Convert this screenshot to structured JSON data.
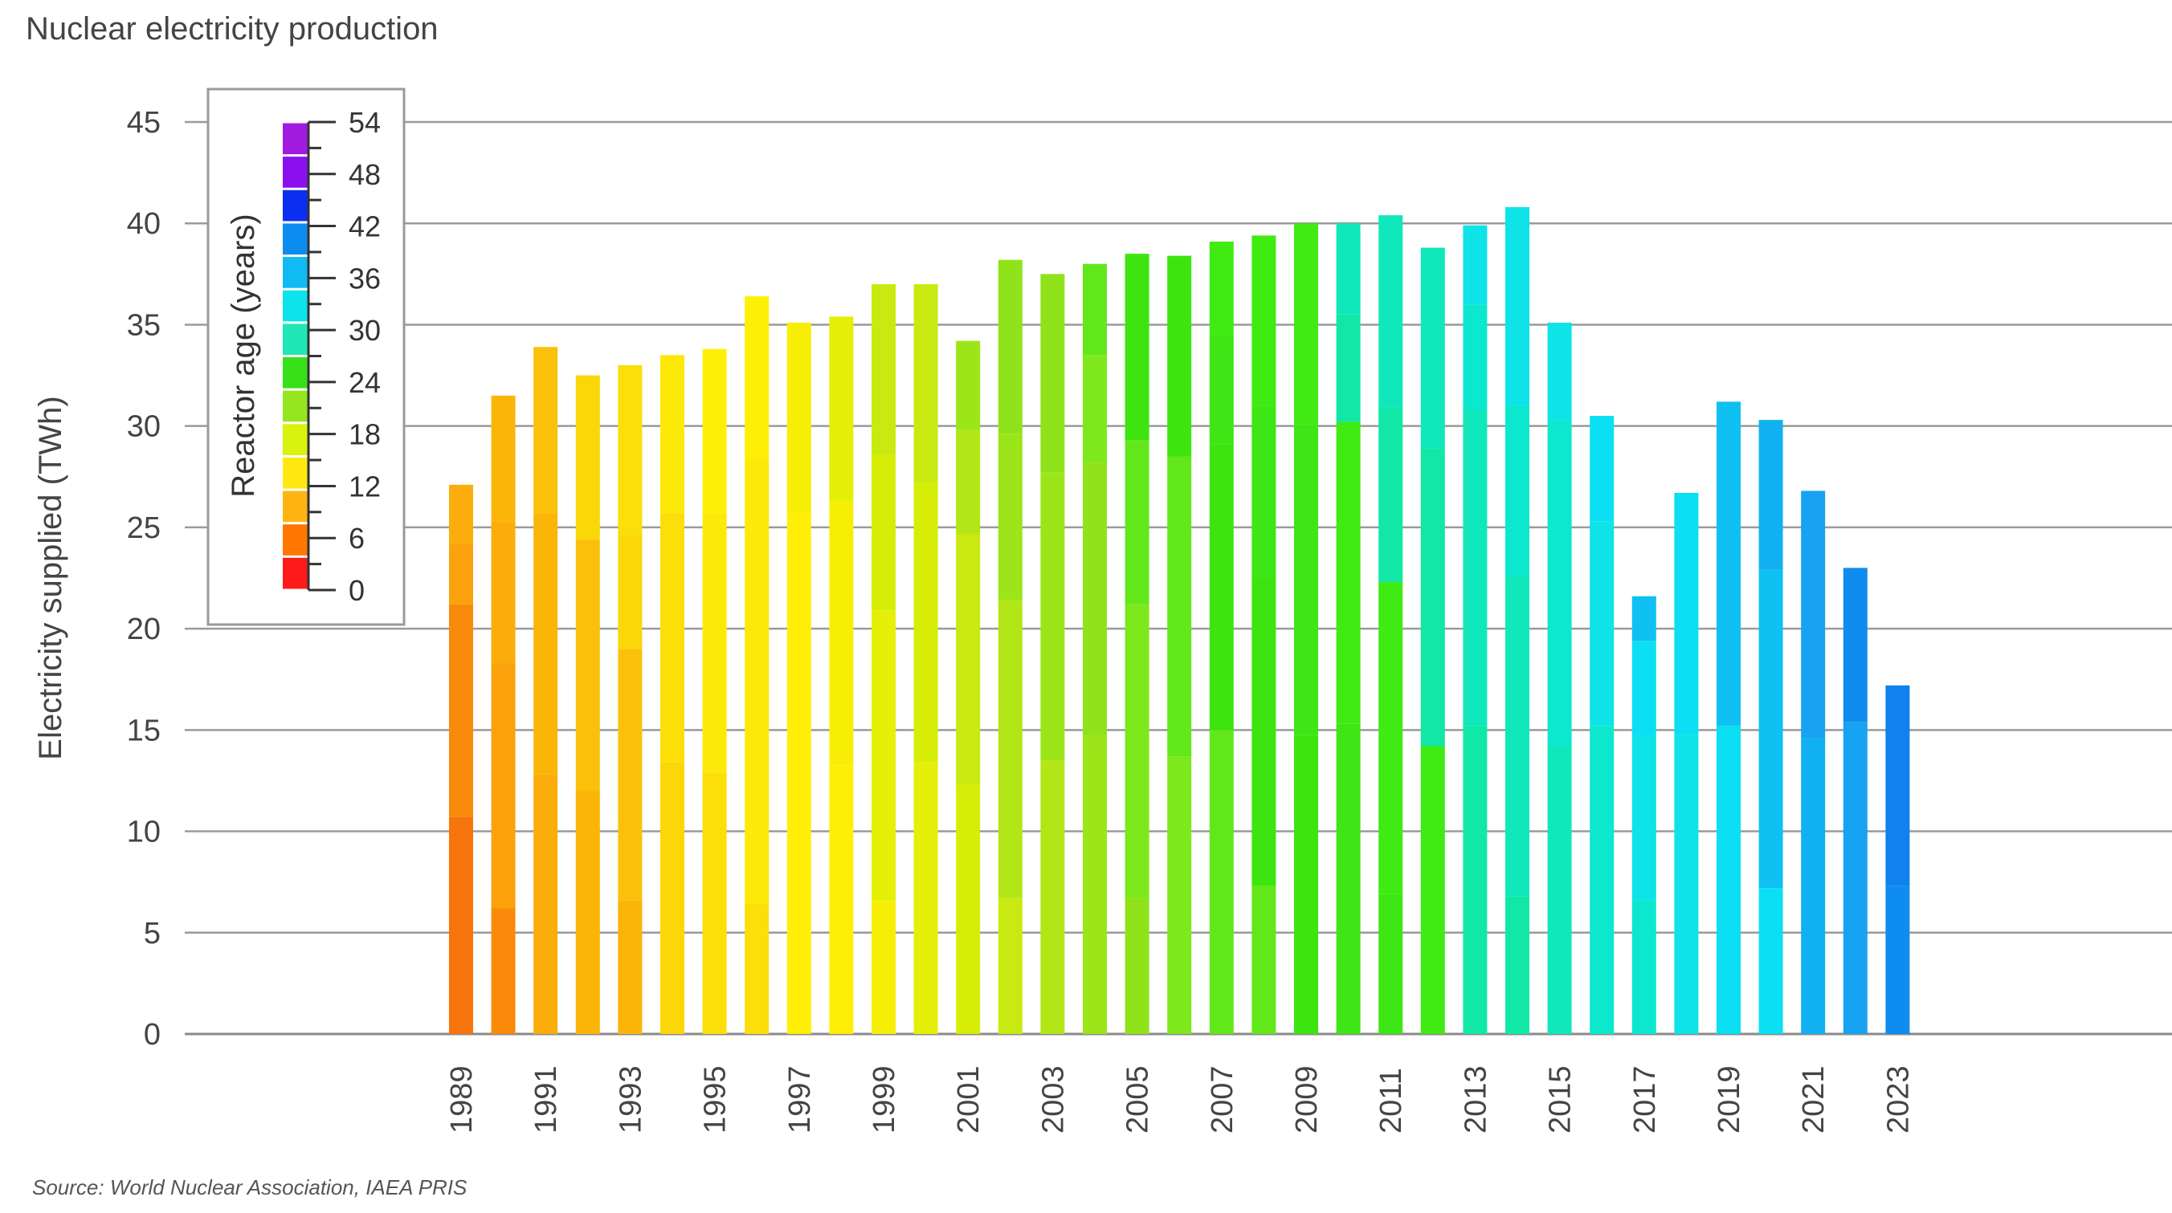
{
  "chart_data": {
    "type": "bar",
    "stacked": true,
    "title": "Nuclear electricity production",
    "source": "Source: World Nuclear Association, IAEA PRIS",
    "ylabel": "Electricity supplied (TWh)",
    "xlabel": "",
    "ylim": [
      0,
      45
    ],
    "yticks": [
      "0",
      "5",
      "10",
      "15",
      "20",
      "25",
      "30",
      "35",
      "40",
      "45"
    ],
    "grid": true,
    "categories": [
      1989,
      1990,
      1991,
      1992,
      1993,
      1994,
      1995,
      1996,
      1997,
      1998,
      1999,
      2000,
      2001,
      2002,
      2003,
      2004,
      2005,
      2006,
      2007,
      2008,
      2009,
      2010,
      2011,
      2012,
      2013,
      2014,
      2015,
      2016,
      2017,
      2018,
      2019,
      2020,
      2021,
      2022,
      2023
    ],
    "xtick_labels": [
      "1989",
      "1991",
      "1993",
      "1995",
      "1997",
      "1999",
      "2001",
      "2003",
      "2005",
      "2007",
      "2009",
      "2011",
      "2013",
      "2015",
      "2017",
      "2019",
      "2021",
      "2023"
    ],
    "totals": [
      27.1,
      31.5,
      33.9,
      32.5,
      33.0,
      33.5,
      33.8,
      36.4,
      35.1,
      35.4,
      37.0,
      37.0,
      34.2,
      38.2,
      37.5,
      38.0,
      38.5,
      38.4,
      39.1,
      39.4,
      40.0,
      40.0,
      40.4,
      38.8,
      39.9,
      40.8,
      35.1,
      30.5,
      21.6,
      26.7,
      31.2,
      30.3,
      26.8,
      23.0,
      17.2
    ],
    "segments": [
      [
        [
          10.7,
          4
        ],
        [
          10.5,
          5
        ],
        [
          3.0,
          6
        ],
        [
          2.9,
          7
        ]
      ],
      [
        [
          6.2,
          5
        ],
        [
          12.1,
          6
        ],
        [
          7.0,
          7
        ],
        [
          6.2,
          8
        ]
      ],
      [
        [
          12.8,
          7
        ],
        [
          12.9,
          8
        ],
        [
          8.2,
          9
        ]
      ],
      [
        [
          12.0,
          8
        ],
        [
          12.4,
          9
        ],
        [
          8.1,
          10
        ]
      ],
      [
        [
          6.6,
          8
        ],
        [
          12.4,
          9
        ],
        [
          5.6,
          10
        ],
        [
          8.4,
          11
        ]
      ],
      [
        [
          13.4,
          10
        ],
        [
          12.3,
          11
        ],
        [
          7.8,
          12
        ]
      ],
      [
        [
          12.9,
          11
        ],
        [
          12.8,
          12
        ],
        [
          8.1,
          13
        ]
      ],
      [
        [
          6.4,
          11
        ],
        [
          22.0,
          12
        ],
        [
          8.0,
          13
        ]
      ],
      [
        [
          25.7,
          13
        ],
        [
          9.4,
          14
        ]
      ],
      [
        [
          13.3,
          13
        ],
        [
          13.0,
          14
        ],
        [
          9.1,
          15
        ]
      ],
      [
        [
          6.6,
          14
        ],
        [
          14.3,
          15
        ],
        [
          7.7,
          16
        ],
        [
          8.4,
          17
        ]
      ],
      [
        [
          13.4,
          15
        ],
        [
          13.8,
          16
        ],
        [
          9.8,
          17
        ]
      ],
      [
        [
          12.3,
          16
        ],
        [
          12.4,
          17
        ],
        [
          5.1,
          18
        ],
        [
          4.4,
          19
        ]
      ],
      [
        [
          6.7,
          17
        ],
        [
          14.7,
          18
        ],
        [
          8.2,
          19
        ],
        [
          8.6,
          20
        ]
      ],
      [
        [
          13.5,
          18
        ],
        [
          14.2,
          19
        ],
        [
          9.8,
          20
        ]
      ],
      [
        [
          14.7,
          19
        ],
        [
          13.5,
          20
        ],
        [
          5.3,
          21
        ],
        [
          4.5,
          22
        ]
      ],
      [
        [
          6.7,
          20
        ],
        [
          14.5,
          21
        ],
        [
          8.1,
          22
        ],
        [
          9.2,
          23
        ]
      ],
      [
        [
          13.7,
          21
        ],
        [
          14.8,
          22
        ],
        [
          9.9,
          23
        ]
      ],
      [
        [
          15.0,
          22
        ],
        [
          14.1,
          23
        ],
        [
          5.4,
          24
        ],
        [
          4.6,
          25
        ]
      ],
      [
        [
          7.3,
          22
        ],
        [
          15.2,
          23
        ],
        [
          8.5,
          24
        ],
        [
          8.4,
          25
        ]
      ],
      [
        [
          14.7,
          23
        ],
        [
          15.4,
          24
        ],
        [
          9.9,
          25
        ]
      ],
      [
        [
          15.3,
          24
        ],
        [
          14.9,
          25
        ],
        [
          5.3,
          26
        ],
        [
          4.5,
          27
        ]
      ],
      [
        [
          6.9,
          24
        ],
        [
          15.4,
          25
        ],
        [
          8.6,
          26
        ],
        [
          9.5,
          27
        ]
      ],
      [
        [
          14.2,
          25
        ],
        [
          14.7,
          26
        ],
        [
          9.9,
          27
        ]
      ],
      [
        [
          15.2,
          26
        ],
        [
          15.6,
          27
        ],
        [
          5.2,
          28
        ],
        [
          3.9,
          29
        ]
      ],
      [
        [
          6.8,
          26
        ],
        [
          15.8,
          27
        ],
        [
          8.4,
          28
        ],
        [
          9.8,
          29
        ]
      ],
      [
        [
          14.2,
          27
        ],
        [
          16.1,
          28
        ],
        [
          4.8,
          29
        ]
      ],
      [
        [
          15.2,
          28
        ],
        [
          10.1,
          29
        ],
        [
          5.2,
          30
        ]
      ],
      [
        [
          6.6,
          28
        ],
        [
          8.1,
          29
        ],
        [
          4.7,
          30
        ],
        [
          2.2,
          31
        ]
      ],
      [
        [
          14.8,
          29
        ],
        [
          11.9,
          30
        ]
      ],
      [
        [
          15.2,
          30
        ],
        [
          16.0,
          31
        ]
      ],
      [
        [
          7.2,
          30
        ],
        [
          15.7,
          31
        ],
        [
          7.4,
          32
        ]
      ],
      [
        [
          14.6,
          32
        ],
        [
          12.2,
          33
        ]
      ],
      [
        [
          15.4,
          33
        ],
        [
          7.6,
          34
        ]
      ],
      [
        [
          7.3,
          34
        ],
        [
          9.9,
          35
        ]
      ]
    ],
    "color_scale": {
      "title": "Reactor age (years)",
      "ticks": [
        "0",
        "6",
        "12",
        "18",
        "24",
        "30",
        "36",
        "42",
        "48",
        "54"
      ],
      "colors": [
        "#ff1a1a",
        "#ff7700",
        "#ffb411",
        "#ffe812",
        "#d9f20e",
        "#95e61e",
        "#38e01a",
        "#1fe8b4",
        "#0de3ea",
        "#10baf2",
        "#0d8cf0",
        "#0b2ff0",
        "#8a10ef",
        "#a11adf"
      ]
    },
    "age_colors": [
      "#f53a1a",
      "#f6581a",
      "#f76a17",
      "#f77a14",
      "#f8740c",
      "#fa8a0a",
      "#fba20c",
      "#fbad0b",
      "#fbb509",
      "#fbc10a",
      "#fbd708",
      "#fcde08",
      "#fde908",
      "#ffef06",
      "#f6ef05",
      "#e5ef08",
      "#d6ed08",
      "#c9ea10",
      "#b2e616",
      "#9ce518",
      "#90e31b",
      "#7de81b",
      "#62e81a",
      "#3ee40f",
      "#3fe615",
      "#3feb12",
      "#11e8a6",
      "#10e8bb",
      "#0ce8cd",
      "#0ee3e8",
      "#0adff3",
      "#0fc1f2",
      "#11b1f1",
      "#17a2f2",
      "#0f8cf0",
      "#1081ee"
    ]
  }
}
